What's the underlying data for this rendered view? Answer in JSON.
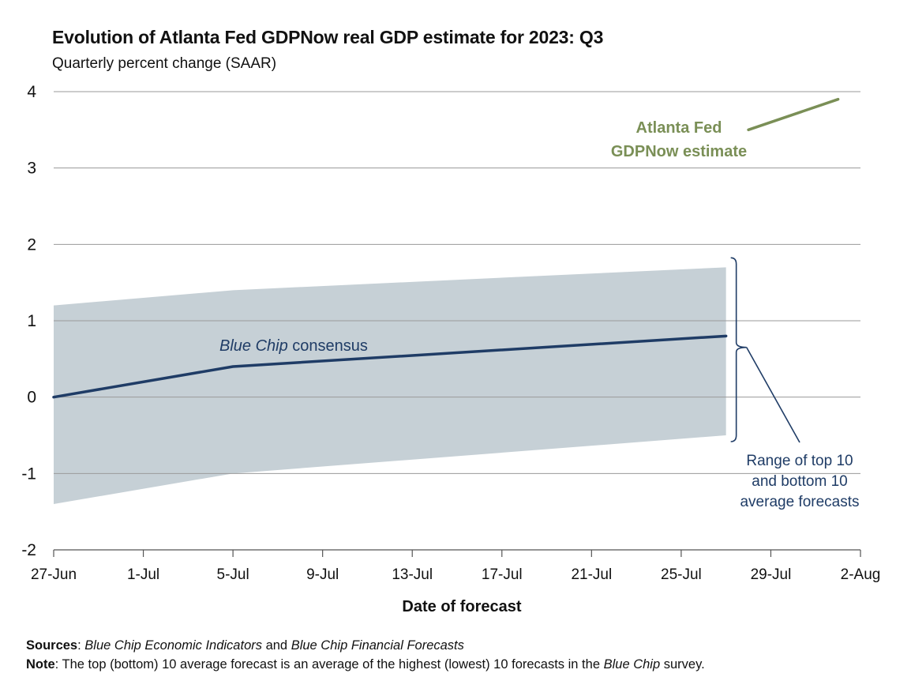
{
  "chart_data": {
    "type": "line",
    "title": "Evolution of Atlanta Fed GDPNow real GDP estimate for 2023: Q3",
    "subtitle": "Quarterly percent change (SAAR)",
    "xlabel": "Date of forecast",
    "ylabel": "",
    "xlim": [
      "2023-06-27",
      "2023-08-02"
    ],
    "ylim": [
      -2,
      4
    ],
    "x_ticks": [
      "27-Jun",
      "1-Jul",
      "5-Jul",
      "9-Jul",
      "13-Jul",
      "17-Jul",
      "21-Jul",
      "25-Jul",
      "29-Jul",
      "2-Aug"
    ],
    "y_ticks": [
      "-2",
      "-1",
      "0",
      "1",
      "2",
      "3",
      "4"
    ],
    "grid": "horizontal",
    "series": [
      {
        "name": "Blue Chip consensus",
        "color": "#1f3c66",
        "x": [
          "2023-06-27",
          "2023-07-05",
          "2023-07-27"
        ],
        "y": [
          0.0,
          0.4,
          0.8
        ]
      },
      {
        "name": "Atlanta Fed GDPNow estimate",
        "color": "#7a8f56",
        "x": [
          "2023-07-28",
          "2023-08-01"
        ],
        "y": [
          3.5,
          3.9
        ]
      }
    ],
    "band": {
      "name": "Range of top 10 and bottom 10 average forecasts",
      "color": "#c6d0d6",
      "x": [
        "2023-06-27",
        "2023-07-05",
        "2023-07-27"
      ],
      "upper": [
        1.2,
        1.4,
        1.7
      ],
      "lower": [
        -1.4,
        -1.0,
        -0.5
      ]
    },
    "annotations": {
      "blue_chip_italic": "Blue Chip",
      "blue_chip_rest": " consensus",
      "gdpnow_line1": "Atlanta Fed",
      "gdpnow_line2": "GDPNow estimate",
      "range_line1": "Range of top 10",
      "range_line2": "and bottom 10",
      "range_line3": "average forecasts"
    }
  },
  "footer": {
    "sources_label": "Sources",
    "sources_sep": ": ",
    "sources_part1": "Blue Chip Economic Indicators",
    "sources_and": " and ",
    "sources_part2": "Blue Chip Financial Forecasts",
    "note_label": "Note",
    "note_text": ": The top (bottom) 10 average forecast is an average of the highest (lowest) 10 forecasts in the ",
    "note_italic": "Blue Chip",
    "note_end": " survey."
  }
}
